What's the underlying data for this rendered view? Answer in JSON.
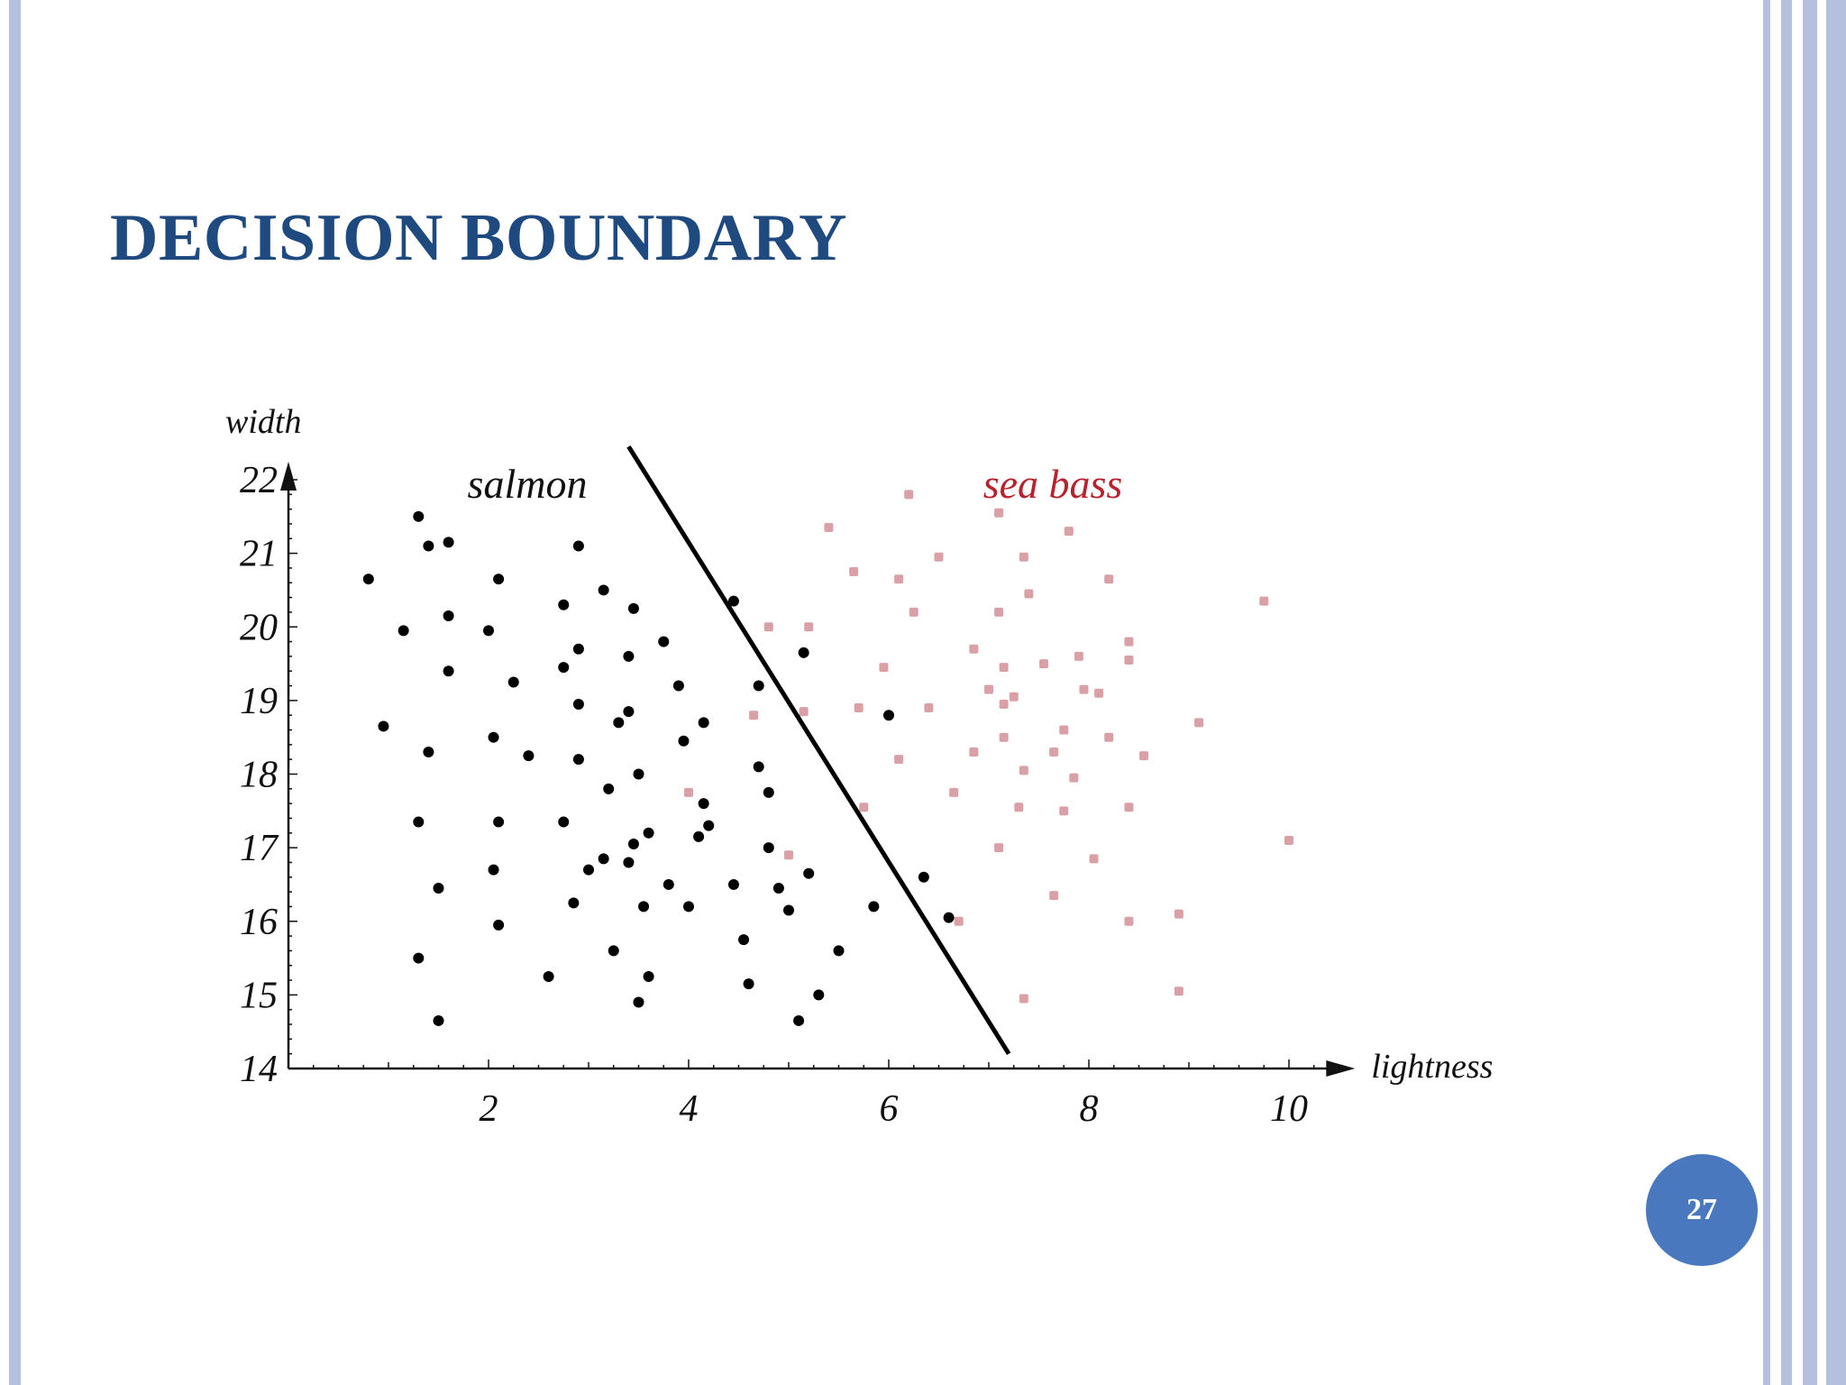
{
  "slide": {
    "title": "DECISION BOUNDARY",
    "page_number": "27",
    "frame_color": "#b4c0de",
    "title_color": "#1f4a80",
    "badge_color": "#4a78be"
  },
  "chart_data": {
    "type": "scatter",
    "xlabel": "lightness",
    "ylabel": "width",
    "xlim": [
      0,
      10.3
    ],
    "ylim": [
      14,
      22
    ],
    "x_ticks": [
      2,
      4,
      6,
      8,
      10
    ],
    "y_ticks": [
      14,
      15,
      16,
      17,
      18,
      19,
      20,
      21,
      22
    ],
    "grid": false,
    "annotations": [
      {
        "text": "salmon",
        "color": "#111111"
      },
      {
        "text": "sea bass",
        "color": "#b8222c"
      }
    ],
    "decision_boundary": {
      "from": [
        3.4,
        22.45
      ],
      "to": [
        7.2,
        14.2
      ],
      "color": "#000000"
    },
    "series": [
      {
        "class": "salmon",
        "color": "#000000",
        "points": [
          [
            1.3,
            21.5
          ],
          [
            1.4,
            21.1
          ],
          [
            1.6,
            21.15
          ],
          [
            0.8,
            20.65
          ],
          [
            2.1,
            20.65
          ],
          [
            1.6,
            20.15
          ],
          [
            1.15,
            19.95
          ],
          [
            2.0,
            19.95
          ],
          [
            2.75,
            20.3
          ],
          [
            2.9,
            21.1
          ],
          [
            3.15,
            20.5
          ],
          [
            3.45,
            20.25
          ],
          [
            1.6,
            19.4
          ],
          [
            2.25,
            19.25
          ],
          [
            2.75,
            19.45
          ],
          [
            2.9,
            19.7
          ],
          [
            3.4,
            19.6
          ],
          [
            3.75,
            19.8
          ],
          [
            0.95,
            18.65
          ],
          [
            1.4,
            18.3
          ],
          [
            2.05,
            18.5
          ],
          [
            2.4,
            18.25
          ],
          [
            2.9,
            18.95
          ],
          [
            3.3,
            18.7
          ],
          [
            3.4,
            18.85
          ],
          [
            3.9,
            19.2
          ],
          [
            4.15,
            18.7
          ],
          [
            2.9,
            18.2
          ],
          [
            3.95,
            18.45
          ],
          [
            3.2,
            17.8
          ],
          [
            3.5,
            18.0
          ],
          [
            4.15,
            17.6
          ],
          [
            1.3,
            17.35
          ],
          [
            2.1,
            17.35
          ],
          [
            2.75,
            17.35
          ],
          [
            3.6,
            17.2
          ],
          [
            4.1,
            17.15
          ],
          [
            4.2,
            17.3
          ],
          [
            1.5,
            16.45
          ],
          [
            2.05,
            16.7
          ],
          [
            3.0,
            16.7
          ],
          [
            3.15,
            16.85
          ],
          [
            3.4,
            16.8
          ],
          [
            3.45,
            17.05
          ],
          [
            3.8,
            16.5
          ],
          [
            4.45,
            16.5
          ],
          [
            2.1,
            15.95
          ],
          [
            2.85,
            16.25
          ],
          [
            3.55,
            16.2
          ],
          [
            4.0,
            16.2
          ],
          [
            1.3,
            15.5
          ],
          [
            3.25,
            15.6
          ],
          [
            4.55,
            15.75
          ],
          [
            2.6,
            15.25
          ],
          [
            3.6,
            15.25
          ],
          [
            4.6,
            15.15
          ],
          [
            1.5,
            14.65
          ],
          [
            3.5,
            14.9
          ],
          [
            5.1,
            14.65
          ],
          [
            5.3,
            15.0
          ],
          [
            5.5,
            15.6
          ],
          [
            4.45,
            20.35
          ],
          [
            5.15,
            19.65
          ],
          [
            4.7,
            19.2
          ],
          [
            6.0,
            18.8
          ],
          [
            4.7,
            18.1
          ],
          [
            4.8,
            17.75
          ],
          [
            4.8,
            17.0
          ],
          [
            5.2,
            16.65
          ],
          [
            4.9,
            16.45
          ],
          [
            5.0,
            16.15
          ],
          [
            5.85,
            16.2
          ],
          [
            6.35,
            16.6
          ],
          [
            6.6,
            16.05
          ]
        ]
      },
      {
        "class": "sea bass",
        "color": "#d9a0a6",
        "points": [
          [
            6.2,
            21.8
          ],
          [
            7.1,
            21.55
          ],
          [
            7.8,
            21.3
          ],
          [
            5.4,
            21.35
          ],
          [
            6.5,
            20.95
          ],
          [
            7.35,
            20.95
          ],
          [
            5.65,
            20.75
          ],
          [
            6.1,
            20.65
          ],
          [
            8.2,
            20.65
          ],
          [
            6.25,
            20.2
          ],
          [
            7.1,
            20.2
          ],
          [
            7.4,
            20.45
          ],
          [
            5.2,
            20.0
          ],
          [
            4.8,
            20.0
          ],
          [
            9.75,
            20.35
          ],
          [
            6.85,
            19.7
          ],
          [
            7.15,
            19.45
          ],
          [
            7.55,
            19.5
          ],
          [
            7.9,
            19.6
          ],
          [
            8.4,
            19.8
          ],
          [
            8.4,
            19.55
          ],
          [
            5.95,
            19.45
          ],
          [
            7.0,
            19.15
          ],
          [
            7.15,
            18.95
          ],
          [
            7.25,
            19.05
          ],
          [
            7.95,
            19.15
          ],
          [
            8.1,
            19.1
          ],
          [
            5.7,
            18.9
          ],
          [
            6.4,
            18.9
          ],
          [
            5.15,
            18.85
          ],
          [
            4.65,
            18.8
          ],
          [
            7.15,
            18.5
          ],
          [
            7.75,
            18.6
          ],
          [
            8.2,
            18.5
          ],
          [
            9.1,
            18.7
          ],
          [
            6.85,
            18.3
          ],
          [
            7.65,
            18.3
          ],
          [
            6.1,
            18.2
          ],
          [
            8.55,
            18.25
          ],
          [
            7.35,
            18.05
          ],
          [
            7.85,
            17.95
          ],
          [
            6.65,
            17.75
          ],
          [
            5.75,
            17.55
          ],
          [
            7.3,
            17.55
          ],
          [
            7.75,
            17.5
          ],
          [
            8.4,
            17.55
          ],
          [
            4.0,
            17.75
          ],
          [
            5.0,
            16.9
          ],
          [
            7.1,
            17.0
          ],
          [
            8.05,
            16.85
          ],
          [
            10.0,
            17.1
          ],
          [
            7.65,
            16.35
          ],
          [
            8.9,
            16.1
          ],
          [
            6.7,
            16.0
          ],
          [
            8.4,
            16.0
          ],
          [
            7.35,
            14.95
          ],
          [
            8.9,
            15.05
          ]
        ]
      }
    ]
  }
}
